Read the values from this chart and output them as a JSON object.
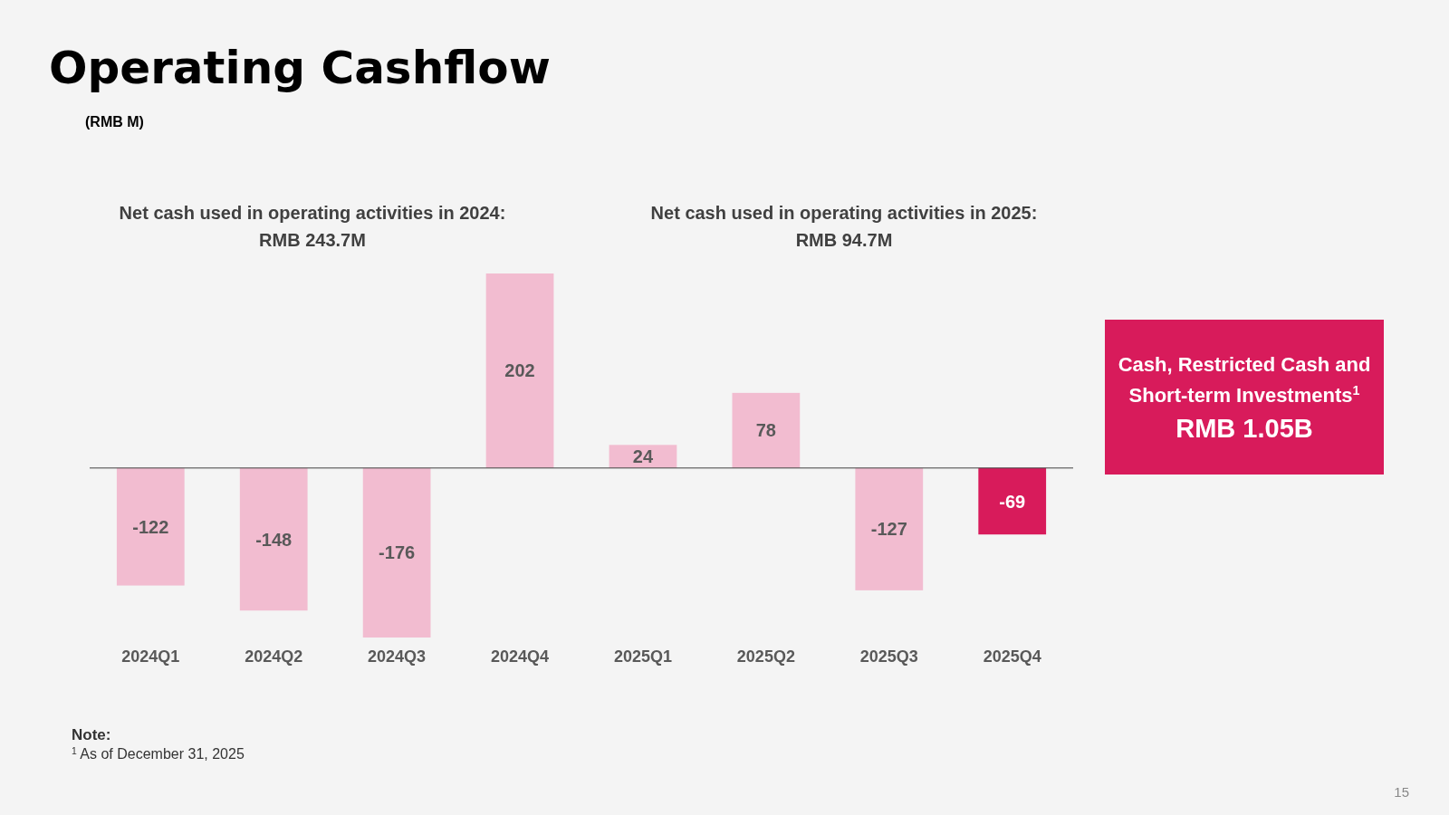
{
  "chart_data": {
    "type": "bar",
    "title": "Operating Cashflow",
    "subtitle": "(RMB M)",
    "categories": [
      "2024Q1",
      "2024Q2",
      "2024Q3",
      "2024Q4",
      "2025Q1",
      "2025Q2",
      "2025Q3",
      "2025Q4"
    ],
    "values": [
      -122,
      -148,
      -176,
      202,
      24,
      78,
      -127,
      -69
    ],
    "colors": [
      "#f2bcd0",
      "#f2bcd0",
      "#f2bcd0",
      "#f2bcd0",
      "#f2bcd0",
      "#f2bcd0",
      "#f2bcd0",
      "#d81b5b"
    ],
    "data_labels": true,
    "annotations": [
      "Net cash used in operating activities in 2024:\nRMB 243.7M",
      "Net cash used in operating activities in 2025:\nRMB 94.7M",
      "Cash, Restricted Cash and\nShort-term Investments$^{1}$",
      "RMB 1.05B",
      "Note:",
      "$^{1}$ As of December 31, 2025",
      "15"
    ]
  }
}
